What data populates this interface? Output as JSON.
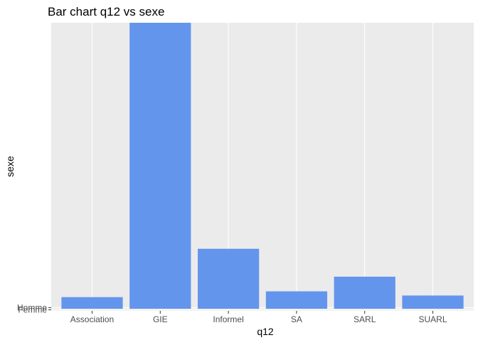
{
  "chart_data": {
    "type": "bar",
    "title": "Bar chart q12 vs sexe",
    "xlabel": "q12",
    "ylabel": "sexe",
    "categories": [
      "Association",
      "GIE",
      "Informel",
      "SA",
      "SARL",
      "SUARL"
    ],
    "values": [
      1.67,
      41,
      8.6,
      2.5,
      4.6,
      1.9
    ],
    "ylim": [
      -0.3,
      41
    ],
    "y_tick_labels": [
      "Homme",
      "Femme"
    ],
    "bar_color": "#6495ED",
    "panel_color": "#EBEBEB",
    "grid": true,
    "legend": "none"
  }
}
